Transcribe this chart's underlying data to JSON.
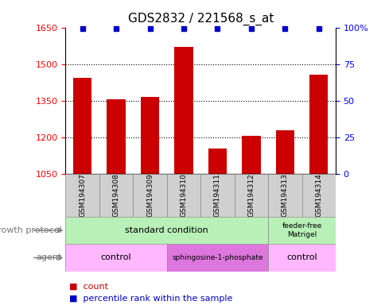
{
  "title": "GDS2832 / 221568_s_at",
  "samples": [
    "GSM194307",
    "GSM194308",
    "GSM194309",
    "GSM194310",
    "GSM194311",
    "GSM194312",
    "GSM194313",
    "GSM194314"
  ],
  "counts": [
    1445,
    1355,
    1365,
    1570,
    1155,
    1207,
    1228,
    1455
  ],
  "percentile_ranks": [
    99,
    99,
    99,
    99,
    99,
    99,
    99,
    99
  ],
  "ylim_left": [
    1050,
    1650
  ],
  "yticks_left": [
    1050,
    1200,
    1350,
    1500,
    1650
  ],
  "ylim_right": [
    0,
    100
  ],
  "yticks_right": [
    0,
    25,
    50,
    75,
    100
  ],
  "bar_color": "#cc0000",
  "dot_color": "#0000cc",
  "growth_color": "#b8f0b8",
  "agent_control_color": "#ffb8ff",
  "agent_sph_color": "#dd77dd",
  "sample_bg_color": "#d0d0d0",
  "legend_items": [
    {
      "color": "#cc0000",
      "label": "count"
    },
    {
      "color": "#0000cc",
      "label": "percentile rank within the sample"
    }
  ]
}
